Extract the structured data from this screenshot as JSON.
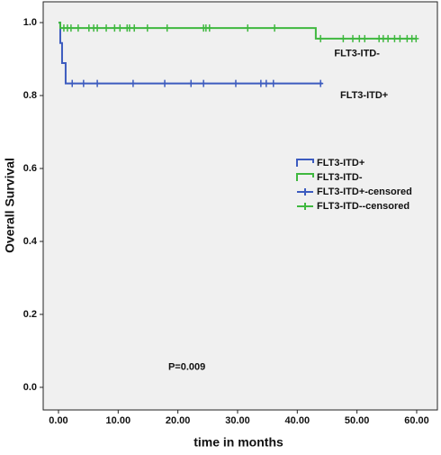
{
  "chart_data": {
    "type": "survival",
    "xlabel": "time in months",
    "ylabel": "Overall Survival",
    "xlim": [
      -2.56,
      63.47
    ],
    "ylim": [
      -0.062,
      1.057
    ],
    "xticks": [
      {
        "value": 0,
        "label": "0.00"
      },
      {
        "value": 10,
        "label": "10.00"
      },
      {
        "value": 20,
        "label": "20.00"
      },
      {
        "value": 30,
        "label": "30.00"
      },
      {
        "value": 40,
        "label": "40.00"
      },
      {
        "value": 50,
        "label": "50.00"
      },
      {
        "value": 60,
        "label": "60.00"
      }
    ],
    "yticks": [
      {
        "value": 0,
        "label": "0.0"
      },
      0.2,
      0.4,
      0.6,
      0.8,
      {
        "value": 1,
        "label": "1.0"
      }
    ],
    "series": [
      {
        "name": "FLT3-ITD+",
        "color": "#3c5bbf",
        "style": "step",
        "x": [
          0,
          0.3,
          0.3,
          0.6,
          0.6,
          1.2,
          1.2,
          44.2
        ],
        "values": [
          1,
          1,
          0.944,
          0.944,
          0.889,
          0.889,
          0.833,
          0.833
        ]
      },
      {
        "name": "FLT3-ITD-",
        "color": "#3fb83f",
        "style": "step",
        "x": [
          0,
          0.3,
          0.3,
          43.1,
          43.1,
          60
        ],
        "values": [
          1,
          1,
          0.985,
          0.985,
          0.956,
          0.956
        ]
      },
      {
        "name": "FLT3-ITD+-censored",
        "color": "#3c5bbf",
        "style": "censor",
        "x": [
          2.3,
          4.2,
          6.5,
          12.5,
          17.8,
          22.2,
          24.3,
          29.7,
          33.9,
          34.8,
          36.0,
          43.9
        ],
        "values": [
          0.833,
          0.833,
          0.833,
          0.833,
          0.833,
          0.833,
          0.833,
          0.833,
          0.833,
          0.833,
          0.833,
          0.833
        ]
      },
      {
        "name": "FLT3-ITD--censored",
        "color": "#3fb83f",
        "style": "censor",
        "x": [
          0.9,
          1.5,
          2.1,
          3.3,
          5.1,
          5.9,
          6.5,
          8.0,
          9.4,
          10.3,
          11.5,
          11.9,
          12.7,
          14.9,
          18.2,
          24.3,
          24.7,
          25.3,
          31.7,
          36.2,
          43.9,
          47.7,
          49.3,
          50.4,
          51.3,
          53.7,
          54.4,
          55.2,
          56.3,
          57.2,
          58.4,
          59.2,
          59.9
        ],
        "values": [
          0.985,
          0.985,
          0.985,
          0.985,
          0.985,
          0.985,
          0.985,
          0.985,
          0.985,
          0.985,
          0.985,
          0.985,
          0.985,
          0.985,
          0.985,
          0.985,
          0.985,
          0.985,
          0.985,
          0.985,
          0.956,
          0.956,
          0.956,
          0.956,
          0.956,
          0.956,
          0.956,
          0.956,
          0.956,
          0.956,
          0.956,
          0.956,
          0.956
        ]
      }
    ],
    "legend": "center-right",
    "annotations": [
      {
        "text": "FLT3-ITD-",
        "x": 50,
        "y": 0.915
      },
      {
        "text": "FLT3-ITD+",
        "x": 51.2,
        "y": 0.8
      },
      {
        "text": "P=0.009",
        "x": 21.5,
        "y": 0.055
      }
    ]
  }
}
